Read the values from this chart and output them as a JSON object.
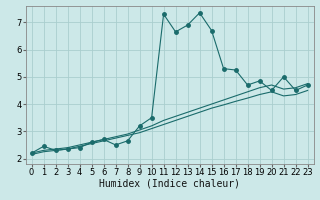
{
  "xlabel": "Humidex (Indice chaleur)",
  "bg_color": "#cce8e8",
  "grid_color": "#aacece",
  "line_color": "#1a6b6b",
  "xlim": [
    -0.5,
    23.5
  ],
  "ylim": [
    1.8,
    7.6
  ],
  "xticks": [
    0,
    1,
    2,
    3,
    4,
    5,
    6,
    7,
    8,
    9,
    10,
    11,
    12,
    13,
    14,
    15,
    16,
    17,
    18,
    19,
    20,
    21,
    22,
    23
  ],
  "yticks": [
    2,
    3,
    4,
    5,
    6,
    7
  ],
  "curve1_x": [
    0,
    1,
    2,
    3,
    4,
    5,
    6,
    7,
    8,
    9,
    10,
    11,
    12,
    13,
    14,
    15,
    16,
    17,
    18,
    19,
    20,
    21,
    22,
    23
  ],
  "curve1_y": [
    2.2,
    2.45,
    2.3,
    2.35,
    2.4,
    2.6,
    2.7,
    2.5,
    2.65,
    3.2,
    3.5,
    7.3,
    6.65,
    6.9,
    7.35,
    6.7,
    5.3,
    5.25,
    4.7,
    4.85,
    4.5,
    5.0,
    4.5,
    4.7
  ],
  "curve2_x": [
    0,
    1,
    2,
    3,
    4,
    5,
    6,
    7,
    8,
    9,
    10,
    11,
    12,
    13,
    14,
    15,
    16,
    17,
    18,
    19,
    20,
    21,
    22,
    23
  ],
  "curve2_y": [
    2.2,
    2.3,
    2.35,
    2.4,
    2.5,
    2.6,
    2.7,
    2.8,
    2.9,
    3.05,
    3.2,
    3.4,
    3.55,
    3.7,
    3.85,
    4.0,
    4.15,
    4.3,
    4.45,
    4.6,
    4.7,
    4.55,
    4.6,
    4.75
  ],
  "curve3_y": [
    2.15,
    2.25,
    2.3,
    2.35,
    2.45,
    2.55,
    2.65,
    2.75,
    2.85,
    2.95,
    3.1,
    3.25,
    3.4,
    3.55,
    3.7,
    3.85,
    3.97,
    4.1,
    4.22,
    4.35,
    4.45,
    4.3,
    4.35,
    4.5
  ],
  "marker_size": 2.5,
  "font_size_label": 7,
  "font_size_tick": 6
}
